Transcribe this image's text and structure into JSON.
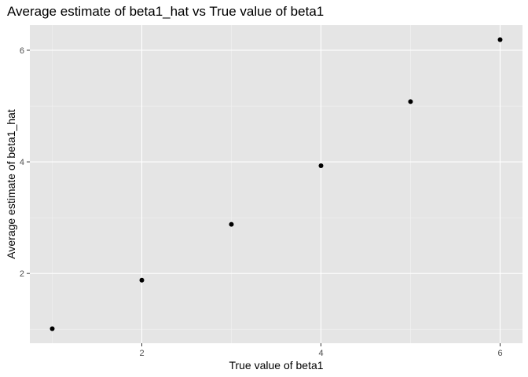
{
  "chart_data": {
    "type": "scatter",
    "title": "Average estimate of beta1_hat vs True value of beta1",
    "xlabel": "True value of beta1",
    "ylabel": "Average estimate of beta1_hat",
    "x": [
      1,
      2,
      3,
      4,
      5,
      6
    ],
    "y": [
      1.01,
      1.88,
      2.88,
      3.93,
      5.08,
      6.19
    ],
    "xlim": [
      0.75,
      6.25
    ],
    "ylim": [
      0.75,
      6.45
    ],
    "x_ticks": [
      2,
      4,
      6
    ],
    "y_ticks": [
      2,
      4,
      6
    ],
    "x_tick_labels": [
      "2",
      "4",
      "6"
    ],
    "y_tick_labels": [
      "2",
      "4",
      "6"
    ],
    "grid": true,
    "legend": "none"
  },
  "colors": {
    "panel_background": "#e5e5e5",
    "grid_major": "#ffffff",
    "grid_minor": "#f2f2f2",
    "point": "#000000",
    "tick_text": "#4d4d4d",
    "tick_mark": "#333333"
  }
}
